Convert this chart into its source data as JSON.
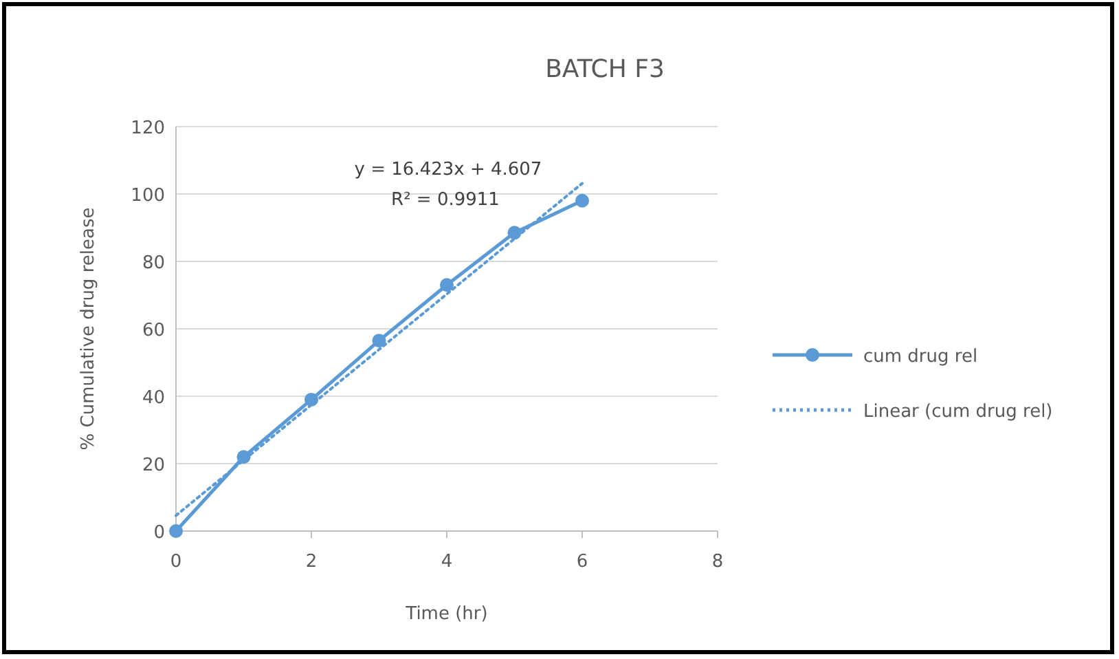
{
  "chart_data": {
    "type": "line",
    "title": "BATCH F3",
    "xlabel": "Time (hr)",
    "ylabel": "% Cumulative drug release",
    "x": [
      0,
      1,
      2,
      3,
      4,
      5,
      6
    ],
    "series": [
      {
        "name": "cum drug rel",
        "color": "#5b9bd5",
        "values": [
          0,
          22,
          39,
          56.5,
          73,
          88.5,
          98
        ],
        "marker": "circle",
        "line_style": "solid"
      },
      {
        "name": "Linear (cum drug rel)",
        "type": "line",
        "color": "#5b9bd5",
        "x": [
          0,
          6
        ],
        "values": [
          4.607,
          103.145
        ],
        "marker": "none",
        "line_style": "dotted"
      }
    ],
    "annotations": [
      "y = 16.423x + 4.607",
      "R² = 0.9911"
    ],
    "xlim": [
      0,
      8
    ],
    "xticks": [
      0,
      2,
      4,
      6,
      8
    ],
    "ylim": [
      0,
      120
    ],
    "yticks": [
      0,
      20,
      40,
      60,
      80,
      100,
      120
    ],
    "grid": "y",
    "legend": "right"
  }
}
